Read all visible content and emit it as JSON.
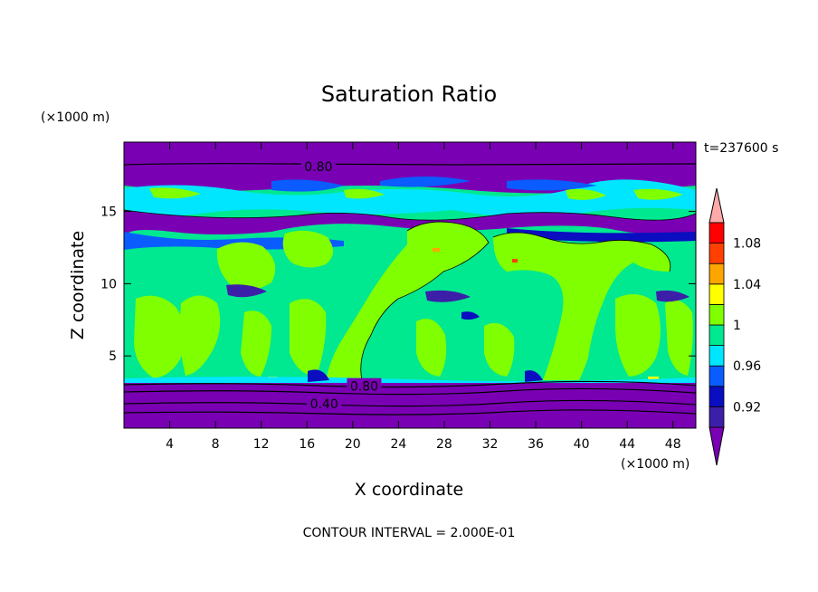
{
  "chart_data": {
    "type": "heatmap",
    "title": "Saturation Ratio",
    "xlabel": "X coordinate",
    "ylabel": "Z coordinate",
    "x_unit_label": "(×1000 m)",
    "y_unit_label": "(×1000 m)",
    "time_label": "t=237600 s",
    "footer": "CONTOUR INTERVAL = 2.000E-01",
    "xlim": [
      0,
      50
    ],
    "ylim": [
      0,
      19.8
    ],
    "x_ticks": [
      "4",
      "8",
      "12",
      "16",
      "20",
      "24",
      "28",
      "32",
      "36",
      "40",
      "44",
      "48"
    ],
    "x_tick_values": [
      4,
      8,
      12,
      16,
      20,
      24,
      28,
      32,
      36,
      40,
      44,
      48
    ],
    "y_ticks": [
      "5",
      "10",
      "15"
    ],
    "y_tick_values": [
      5,
      10,
      15
    ],
    "contour_labels": [
      {
        "text": "0.80",
        "x": 17.0,
        "y": 18.1
      },
      {
        "text": "0.80",
        "x": 21.0,
        "y": 2.9
      },
      {
        "text": "0.40",
        "x": 17.5,
        "y": 1.7
      }
    ],
    "colorbar": {
      "levels": [
        0.9,
        0.92,
        0.94,
        0.96,
        0.98,
        1.0,
        1.02,
        1.04,
        1.06,
        1.08,
        1.1
      ],
      "colors": [
        "#7a00b4",
        "#3c1fa8",
        "#0a0dc0",
        "#0a5cff",
        "#00e6ff",
        "#00e890",
        "#80ff00",
        "#ffff00",
        "#ffa500",
        "#ff4000",
        "#ff0000",
        "#ffaaaa"
      ],
      "labels": [
        "0.92",
        "0.96",
        "1",
        "1.04",
        "1.08"
      ],
      "label_values": [
        0.92,
        0.96,
        1.0,
        1.04,
        1.08
      ],
      "under_color": "#7a00b4",
      "over_color": "#ffaaaa"
    },
    "layers": {
      "upper_stable_top": 16.5,
      "upper_mix_top": 17.0,
      "upper_mix_bottom": 12.5,
      "lower_stable_top": 3.2,
      "levels_lower": [
        {
          "z_top": 3.2,
          "value": 0.8
        },
        {
          "z_top": 1.7,
          "value": 0.4
        }
      ]
    }
  }
}
